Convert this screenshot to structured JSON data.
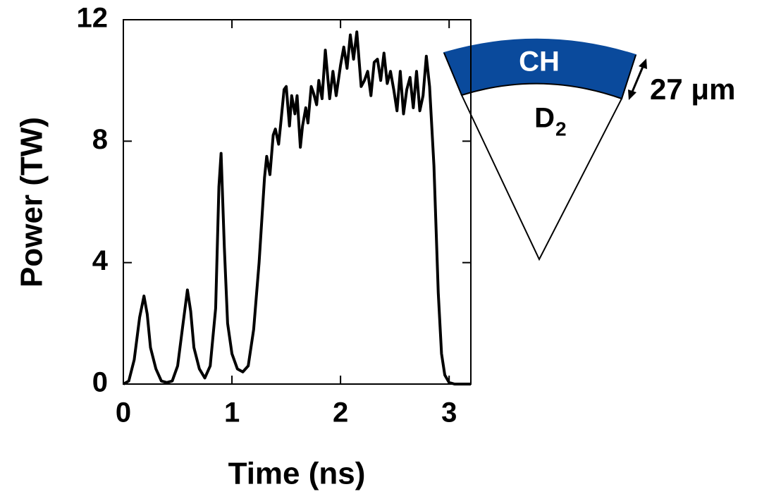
{
  "chart_data": {
    "type": "line",
    "x_label": "Time (ns)",
    "y_label": "Power (TW)",
    "x": [
      0,
      0.05,
      0.1,
      0.15,
      0.19,
      0.22,
      0.25,
      0.3,
      0.35,
      0.4,
      0.45,
      0.5,
      0.55,
      0.59,
      0.62,
      0.65,
      0.7,
      0.75,
      0.8,
      0.85,
      0.88,
      0.9,
      0.93,
      0.96,
      1.0,
      1.05,
      1.1,
      1.15,
      1.2,
      1.25,
      1.3,
      1.32,
      1.35,
      1.38,
      1.4,
      1.43,
      1.45,
      1.48,
      1.5,
      1.53,
      1.55,
      1.58,
      1.6,
      1.63,
      1.65,
      1.68,
      1.7,
      1.73,
      1.75,
      1.78,
      1.8,
      1.83,
      1.86,
      1.88,
      1.9,
      1.93,
      1.96,
      2.0,
      2.03,
      2.06,
      2.09,
      2.12,
      2.15,
      2.19,
      2.22,
      2.25,
      2.28,
      2.31,
      2.34,
      2.37,
      2.4,
      2.43,
      2.46,
      2.49,
      2.52,
      2.55,
      2.58,
      2.61,
      2.64,
      2.67,
      2.7,
      2.73,
      2.76,
      2.79,
      2.82,
      2.86,
      2.9,
      2.93,
      2.96,
      3.0,
      3.05,
      3.1,
      3.2
    ],
    "values": [
      0,
      0.1,
      0.8,
      2.2,
      2.9,
      2.3,
      1.2,
      0.5,
      0.1,
      0.05,
      0.1,
      0.6,
      2.0,
      3.1,
      2.4,
      1.2,
      0.5,
      0.2,
      0.6,
      2.5,
      6.5,
      7.6,
      4.5,
      2.0,
      1.0,
      0.5,
      0.4,
      0.6,
      1.8,
      4.0,
      6.8,
      7.5,
      6.9,
      8.2,
      8.4,
      7.9,
      8.6,
      9.7,
      9.8,
      8.5,
      9.5,
      8.9,
      9.5,
      7.8,
      8.5,
      9.1,
      8.6,
      9.8,
      9.6,
      9.2,
      10.0,
      9.4,
      11.0,
      10.2,
      9.4,
      10.3,
      9.5,
      10.5,
      11.1,
      10.4,
      11.5,
      10.7,
      11.6,
      9.8,
      10.0,
      10.3,
      9.5,
      10.6,
      10.7,
      10.0,
      10.9,
      9.9,
      10.3,
      9.7,
      9.0,
      10.3,
      8.9,
      9.7,
      10.1,
      9.1,
      10.3,
      9.0,
      9.5,
      10.8,
      9.8,
      7.2,
      3.0,
      1.0,
      0.3,
      0.05,
      0,
      0,
      0
    ],
    "color": "#000000",
    "xlim": [
      0,
      3.2
    ],
    "xticks": [
      0,
      1,
      2,
      3
    ],
    "ylim": [
      0,
      12
    ],
    "yticks": [
      0,
      4,
      8,
      12
    ]
  },
  "diagram": {
    "shell_label": "CH",
    "core_label": "D",
    "core_subscript": "2",
    "thickness_label": "27 μm"
  }
}
